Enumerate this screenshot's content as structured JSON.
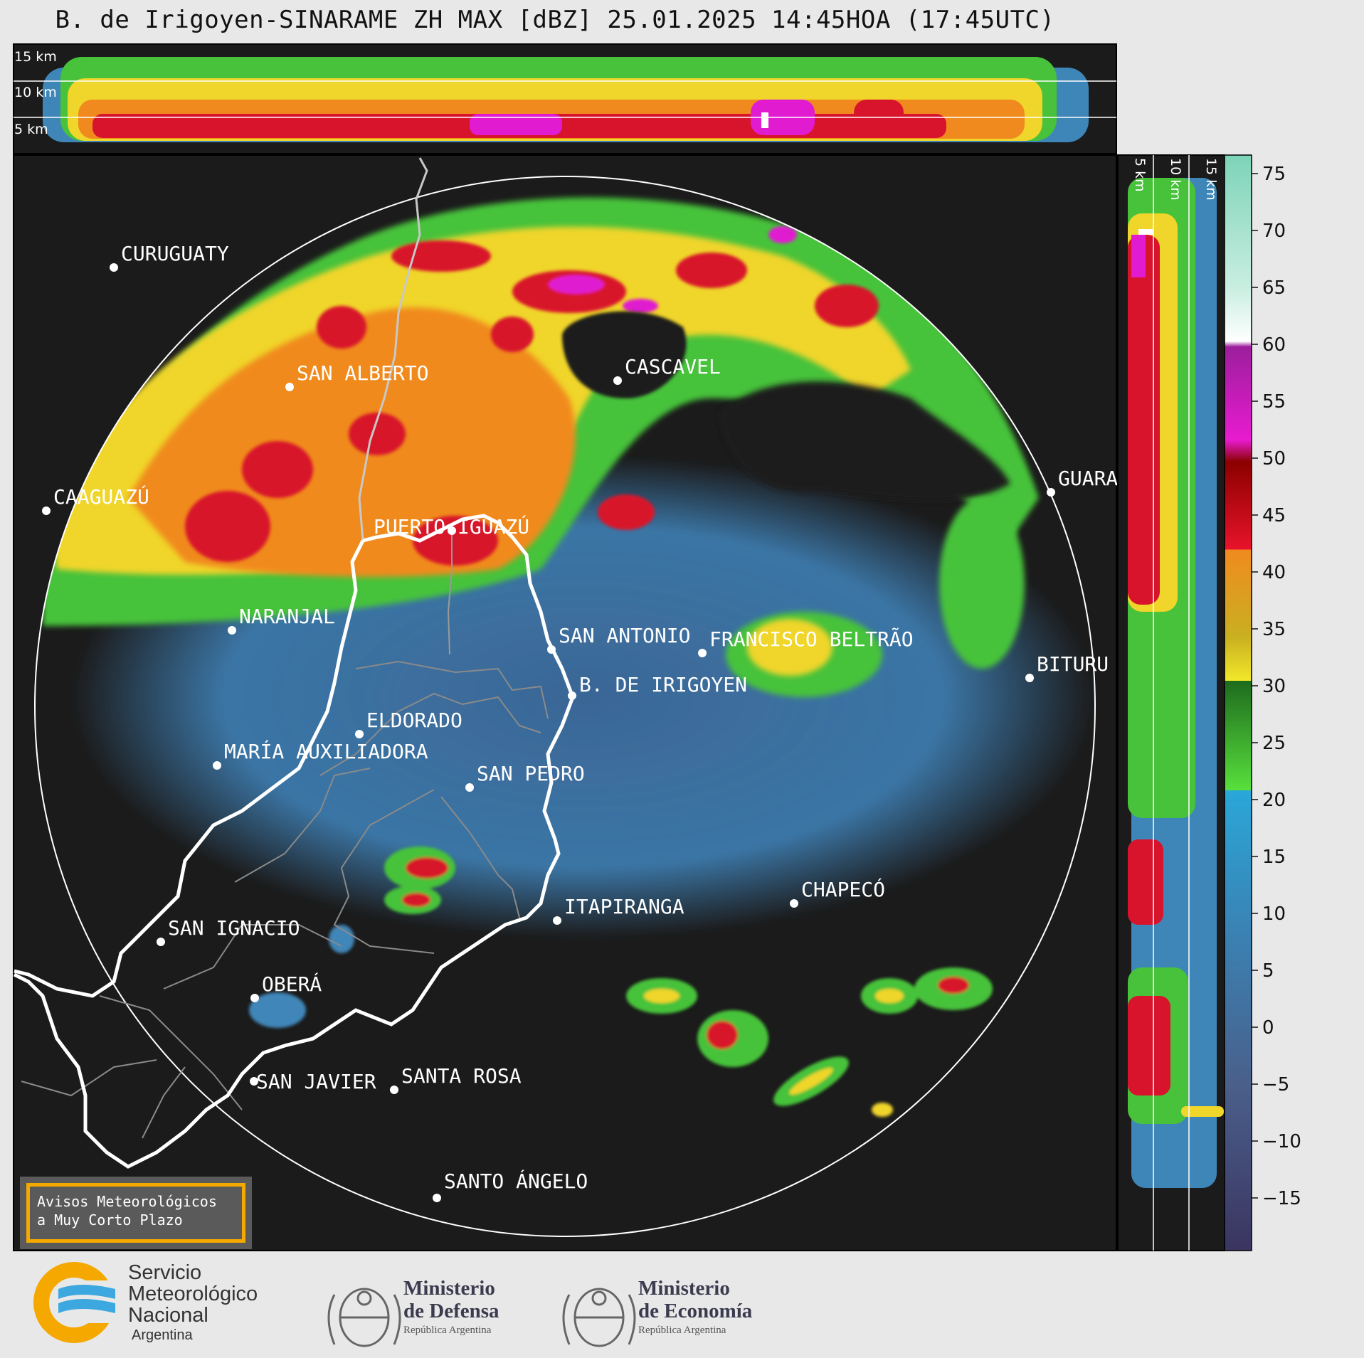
{
  "title": "B. de Irigoyen-SINARAME ZH MAX [dBZ] 25.01.2025 14:45HOA (17:45UTC)",
  "top_panel_altitudes": [
    "15 km",
    "10 km",
    "5 km"
  ],
  "side_panel_altitudes": [
    "5 km",
    "10 km",
    "15 km"
  ],
  "colorbar": {
    "unit": "dBZ",
    "ticks": [
      "75",
      "70",
      "65",
      "60",
      "55",
      "50",
      "45",
      "40",
      "35",
      "30",
      "25",
      "20",
      "15",
      "10",
      "5",
      "0",
      "−5",
      "−10",
      "−15"
    ]
  },
  "cities": [
    {
      "name": "CURUGUATY"
    },
    {
      "name": "SAN ALBERTO"
    },
    {
      "name": "CASCAVEL"
    },
    {
      "name": "CAAGUAZÚ"
    },
    {
      "name": "PUERTO IGUAZÚ"
    },
    {
      "name": "GUARA"
    },
    {
      "name": "NARANJAL"
    },
    {
      "name": "SAN ANTONIO"
    },
    {
      "name": "FRANCISCO BELTRÃO"
    },
    {
      "name": "B. DE IRIGOYEN"
    },
    {
      "name": "BITURU"
    },
    {
      "name": "ELDORADO"
    },
    {
      "name": "MARÍA AUXILIADORA"
    },
    {
      "name": "SAN PEDRO"
    },
    {
      "name": "CHAPECÓ"
    },
    {
      "name": "ITAPIRANGA"
    },
    {
      "name": "SAN IGNACIO"
    },
    {
      "name": "OBERÁ"
    },
    {
      "name": "SAN JAVIER"
    },
    {
      "name": "SANTA ROSA"
    },
    {
      "name": "SANTO ÁNGELO"
    }
  ],
  "alerts_box": {
    "line1": "Avisos Meteorológicos",
    "line2": "a Muy Corto Plazo"
  },
  "footer": {
    "smn_line1": "Servicio",
    "smn_line2": "Meteorológico",
    "smn_line3": "Nacional",
    "smn_line4": "Argentina",
    "defensa_line1": "Ministerio",
    "defensa_line2": "de Defensa",
    "defensa_line3": "República Argentina",
    "economia_line1": "Ministerio",
    "economia_line2": "de Economía",
    "economia_line3": "República Argentina"
  },
  "colors": {
    "map_background": "#1b1b1b",
    "range_ring": "#ffffff",
    "border_white": "#ffffff",
    "province_lines": "#8a8a8a",
    "alert_border": "#f5a800",
    "smn_orange": "#f5a800",
    "smn_blue": "#3da8e0"
  }
}
